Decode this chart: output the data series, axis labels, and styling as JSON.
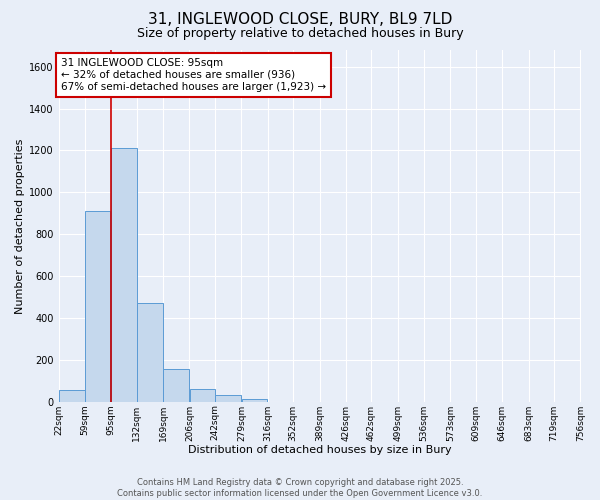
{
  "title": "31, INGLEWOOD CLOSE, BURY, BL9 7LD",
  "subtitle": "Size of property relative to detached houses in Bury",
  "xlabel": "Distribution of detached houses by size in Bury",
  "ylabel": "Number of detached properties",
  "bar_values": [
    55,
    910,
    1210,
    470,
    155,
    60,
    30,
    15,
    0,
    0,
    0,
    0,
    0,
    0,
    0,
    0,
    0,
    0,
    0,
    0
  ],
  "bar_left_edges": [
    22,
    59,
    95,
    132,
    169,
    206,
    242,
    279,
    316,
    352,
    389,
    426,
    462,
    499,
    536,
    573,
    609,
    646,
    683,
    719
  ],
  "bar_widths": [
    37,
    36,
    37,
    37,
    37,
    36,
    37,
    37,
    36,
    37,
    37,
    36,
    37,
    37,
    37,
    36,
    37,
    37,
    36,
    37
  ],
  "x_tick_labels": [
    "22sqm",
    "59sqm",
    "95sqm",
    "132sqm",
    "169sqm",
    "206sqm",
    "242sqm",
    "279sqm",
    "316sqm",
    "352sqm",
    "389sqm",
    "426sqm",
    "462sqm",
    "499sqm",
    "536sqm",
    "573sqm",
    "609sqm",
    "646sqm",
    "683sqm",
    "719sqm",
    "756sqm"
  ],
  "x_tick_positions": [
    22,
    59,
    95,
    132,
    169,
    206,
    242,
    279,
    316,
    352,
    389,
    426,
    462,
    499,
    536,
    573,
    609,
    646,
    683,
    719,
    756
  ],
  "ylim": [
    0,
    1680
  ],
  "bar_color": "#c5d8ed",
  "bar_edge_color": "#5b9bd5",
  "red_line_x": 95,
  "annotation_line1": "31 INGLEWOOD CLOSE: 95sqm",
  "annotation_line2": "← 32% of detached houses are smaller (936)",
  "annotation_line3": "67% of semi-detached houses are larger (1,923) →",
  "annotation_box_color": "#ffffff",
  "annotation_box_edge_color": "#cc0000",
  "footer_line1": "Contains HM Land Registry data © Crown copyright and database right 2025.",
  "footer_line2": "Contains public sector information licensed under the Open Government Licence v3.0.",
  "background_color": "#e8eef8",
  "grid_color": "#ffffff",
  "title_fontsize": 11,
  "subtitle_fontsize": 9,
  "axis_label_fontsize": 8,
  "tick_fontsize": 6.5,
  "annotation_fontsize": 7.5,
  "footer_fontsize": 6
}
